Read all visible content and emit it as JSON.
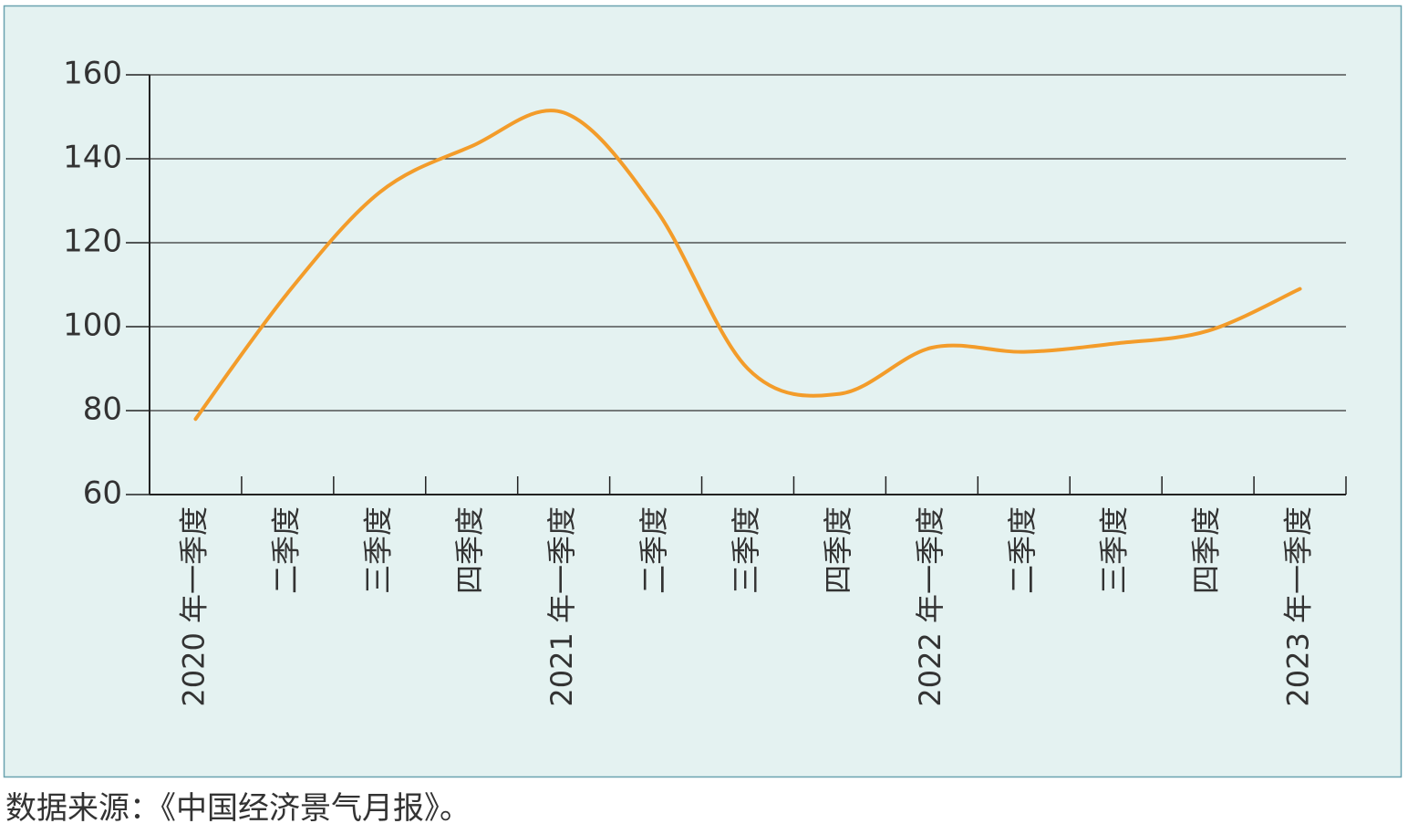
{
  "chart_data": {
    "type": "line",
    "categories": [
      "2020 年一季度",
      "二季度",
      "三季度",
      "四季度",
      "2021 年一季度",
      "二季度",
      "三季度",
      "四季度",
      "2022 年一季度",
      "二季度",
      "三季度",
      "四季度",
      "2023 年一季度"
    ],
    "series": [
      {
        "color": "#f39c2a",
        "values": [
          78,
          108,
          132,
          143,
          151,
          128,
          90,
          84,
          95,
          94,
          96,
          99,
          109
        ]
      }
    ],
    "ylim": [
      60,
      160
    ],
    "yticks": [
      60,
      80,
      100,
      120,
      140,
      160
    ],
    "grid": true,
    "source": "数据来源：《中国经济景气月报》。"
  }
}
